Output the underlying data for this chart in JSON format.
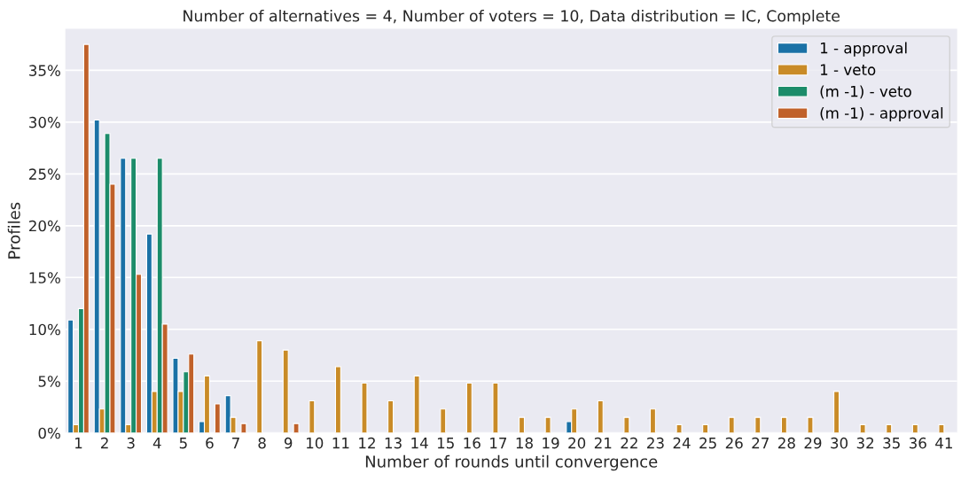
{
  "chart_data": {
    "type": "bar",
    "title": "Number of alternatives = 4, Number of voters = 10, Data distribution = IC, Complete",
    "xlabel": "Number of rounds until convergence",
    "ylabel": "Profiles",
    "categories": [
      "1",
      "2",
      "3",
      "4",
      "5",
      "6",
      "7",
      "8",
      "9",
      "10",
      "11",
      "12",
      "13",
      "14",
      "15",
      "16",
      "17",
      "18",
      "19",
      "20",
      "21",
      "22",
      "23",
      "24",
      "25",
      "26",
      "27",
      "28",
      "29",
      "30",
      "32",
      "35",
      "36",
      "41"
    ],
    "series": [
      {
        "name": "1 - approval",
        "color": "#1a71a6",
        "values": [
          10.9,
          30.2,
          26.5,
          19.2,
          7.2,
          1.1,
          3.6,
          null,
          null,
          null,
          null,
          null,
          null,
          null,
          null,
          null,
          null,
          null,
          null,
          1.1,
          null,
          null,
          null,
          null,
          null,
          null,
          null,
          null,
          null,
          null,
          null,
          null,
          null,
          null
        ]
      },
      {
        "name": "1 - veto",
        "color": "#c98b27",
        "values": [
          0.8,
          2.3,
          0.8,
          4.0,
          4.0,
          5.5,
          1.5,
          8.9,
          8.0,
          3.1,
          6.4,
          4.8,
          3.1,
          5.5,
          2.3,
          4.8,
          4.8,
          1.5,
          1.5,
          2.3,
          3.1,
          1.5,
          2.3,
          0.8,
          0.8,
          1.5,
          1.5,
          1.5,
          1.5,
          4.0,
          0.8,
          0.8,
          0.8,
          0.8
        ]
      },
      {
        "name": "(m -1) - veto",
        "color": "#1c8c6a",
        "values": [
          12.0,
          28.9,
          26.5,
          26.5,
          5.9,
          null,
          null,
          null,
          null,
          null,
          null,
          null,
          null,
          null,
          null,
          null,
          null,
          null,
          null,
          null,
          null,
          null,
          null,
          null,
          null,
          null,
          null,
          null,
          null,
          null,
          null,
          null,
          null,
          null
        ]
      },
      {
        "name": "(m -1) - approval",
        "color": "#c0612a",
        "values": [
          37.5,
          24.0,
          15.3,
          10.5,
          7.6,
          2.8,
          0.9,
          null,
          0.9,
          null,
          null,
          null,
          null,
          null,
          null,
          null,
          null,
          null,
          null,
          null,
          null,
          null,
          null,
          null,
          null,
          null,
          null,
          null,
          null,
          null,
          null,
          null,
          null,
          null
        ]
      }
    ],
    "ylim": [
      0,
      39
    ],
    "yticks": [
      {
        "value": 0,
        "label": "0%"
      },
      {
        "value": 5,
        "label": "5%"
      },
      {
        "value": 10,
        "label": "10%"
      },
      {
        "value": 15,
        "label": "15%"
      },
      {
        "value": 20,
        "label": "20%"
      },
      {
        "value": 25,
        "label": "25%"
      },
      {
        "value": 30,
        "label": "30%"
      },
      {
        "value": 35,
        "label": "35%"
      }
    ],
    "grid": "y",
    "legend": "top right"
  }
}
